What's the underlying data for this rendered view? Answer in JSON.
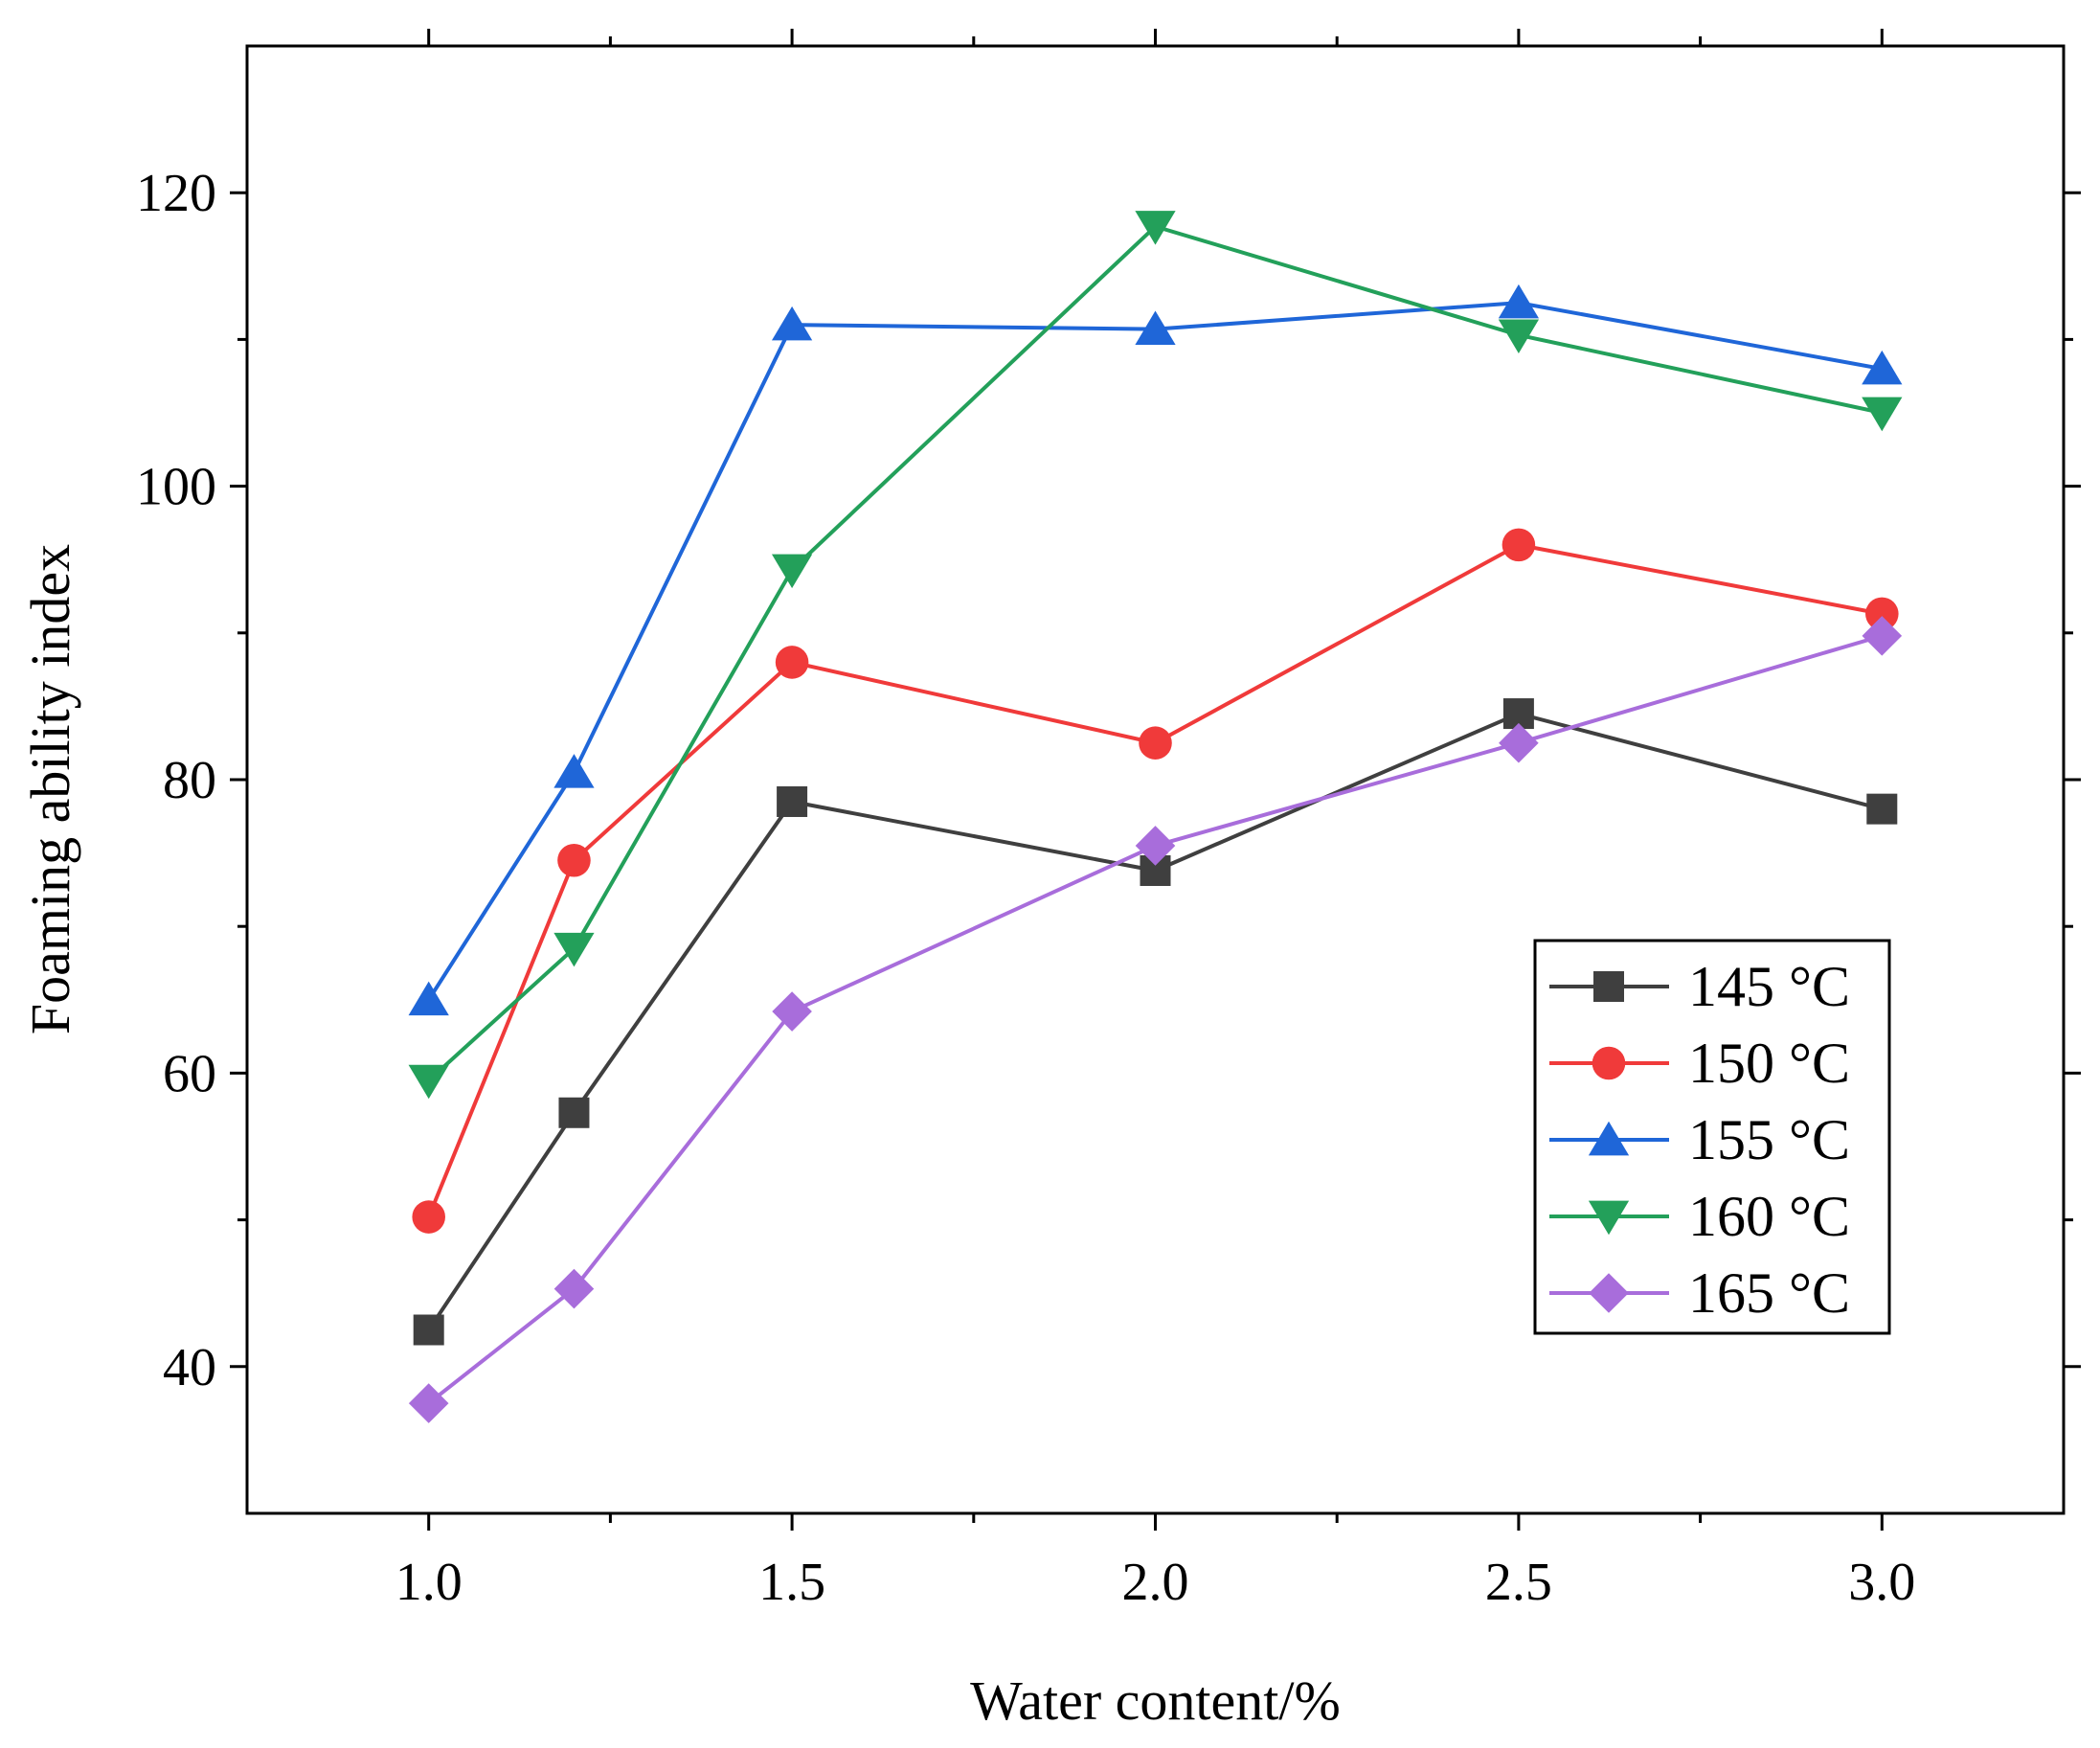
{
  "chart_data": {
    "type": "line",
    "title": "",
    "xlabel": "Water content/%",
    "ylabel": "Foaming ability index",
    "x": [
      1.0,
      1.2,
      1.5,
      2.0,
      2.5,
      3.0
    ],
    "xlim": [
      0.75,
      3.25
    ],
    "ylim": [
      30,
      130
    ],
    "x_ticks": [
      "1.0",
      "1.5",
      "2.0",
      "2.5",
      "3.0"
    ],
    "x_tick_values": [
      1.0,
      1.5,
      2.0,
      2.5,
      3.0
    ],
    "x_minor_ticks": [
      1.25,
      1.75,
      2.25,
      2.75
    ],
    "y_ticks": [
      "40",
      "60",
      "80",
      "100",
      "120"
    ],
    "y_tick_values": [
      40,
      60,
      80,
      100,
      120
    ],
    "y_minor_ticks": [
      50,
      70,
      90,
      110
    ],
    "grid": false,
    "legend_position": "right",
    "series": [
      {
        "name": "145 °C",
        "color": "#3f3f3f",
        "marker": "square",
        "values": [
          42.5,
          57.3,
          78.5,
          73.8,
          84.5,
          78.0
        ]
      },
      {
        "name": "150 °C",
        "color": "#f03a3a",
        "marker": "circle",
        "values": [
          50.2,
          74.5,
          88.0,
          82.5,
          96.0,
          91.3
        ]
      },
      {
        "name": "155 °C",
        "color": "#1f66d8",
        "marker": "triangle-up",
        "values": [
          65.0,
          80.5,
          111.0,
          110.7,
          112.5,
          108.0
        ]
      },
      {
        "name": "160 °C",
        "color": "#23a05a",
        "marker": "triangle-down",
        "values": [
          59.5,
          68.5,
          94.3,
          117.7,
          110.3,
          105.0
        ]
      },
      {
        "name": "165 °C",
        "color": "#a86ddb",
        "marker": "diamond",
        "values": [
          37.5,
          45.3,
          64.2,
          75.5,
          82.5,
          89.8
        ]
      }
    ]
  }
}
